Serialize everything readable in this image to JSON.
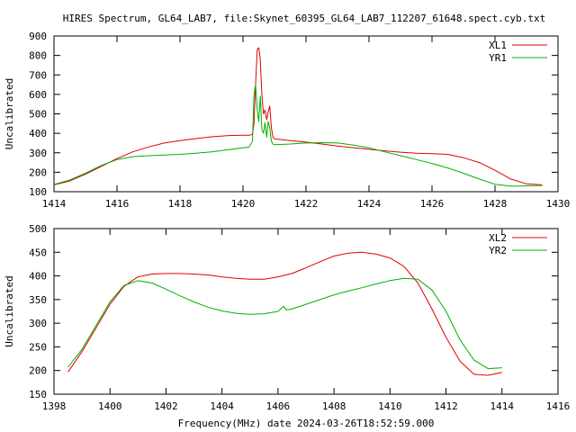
{
  "title": "HIRES Spectrum, GL64_LAB7, file:Skynet_60395_GL64_LAB7_112207_61648.spect.cyb.txt",
  "colors": {
    "red": "#e00000",
    "green": "#00b000",
    "axis": "#000000"
  },
  "chart_data": [
    {
      "type": "line",
      "xlabel": "",
      "ylabel": "Uncalibrated",
      "xlim": [
        1414,
        1430
      ],
      "ylim": [
        100,
        900
      ],
      "xticks": [
        1414,
        1416,
        1418,
        1420,
        1422,
        1424,
        1426,
        1428,
        1430
      ],
      "yticks": [
        100,
        200,
        300,
        400,
        500,
        600,
        700,
        800,
        900
      ],
      "legend_position": "top-right",
      "series": [
        {
          "name": "XL1",
          "color": "#e00000",
          "x": [
            1414.0,
            1414.5,
            1415.0,
            1415.5,
            1416.0,
            1416.5,
            1417.0,
            1417.5,
            1418.0,
            1418.5,
            1419.0,
            1419.5,
            1420.0,
            1420.2,
            1420.3,
            1420.35,
            1420.4,
            1420.45,
            1420.5,
            1420.55,
            1420.6,
            1420.65,
            1420.7,
            1420.75,
            1420.8,
            1420.85,
            1420.9,
            1420.95,
            1421.0,
            1421.5,
            1422.0,
            1422.5,
            1423.0,
            1423.5,
            1424.0,
            1424.5,
            1425.0,
            1425.5,
            1426.0,
            1426.5,
            1427.0,
            1427.5,
            1428.0,
            1428.5,
            1429.0,
            1429.5
          ],
          "y": [
            135,
            155,
            190,
            230,
            270,
            305,
            330,
            350,
            362,
            373,
            382,
            388,
            390,
            390,
            395,
            450,
            650,
            830,
            840,
            780,
            590,
            500,
            520,
            470,
            510,
            540,
            430,
            380,
            372,
            362,
            355,
            345,
            335,
            326,
            318,
            310,
            303,
            298,
            295,
            292,
            275,
            250,
            210,
            165,
            140,
            135
          ]
        },
        {
          "name": "YR1",
          "color": "#00b000",
          "x": [
            1414.0,
            1414.5,
            1415.0,
            1415.5,
            1416.0,
            1416.5,
            1417.0,
            1417.5,
            1418.0,
            1418.5,
            1419.0,
            1419.5,
            1420.0,
            1420.2,
            1420.3,
            1420.35,
            1420.4,
            1420.45,
            1420.5,
            1420.55,
            1420.6,
            1420.65,
            1420.7,
            1420.75,
            1420.8,
            1420.85,
            1420.9,
            1420.95,
            1421.0,
            1421.5,
            1422.0,
            1422.5,
            1423.0,
            1423.5,
            1424.0,
            1424.5,
            1425.0,
            1425.5,
            1426.0,
            1426.5,
            1427.0,
            1427.5,
            1428.0,
            1428.5,
            1429.0,
            1429.5
          ],
          "y": [
            137,
            160,
            195,
            235,
            265,
            280,
            285,
            288,
            292,
            298,
            305,
            315,
            325,
            330,
            360,
            600,
            650,
            520,
            460,
            590,
            420,
            400,
            455,
            380,
            460,
            430,
            360,
            345,
            342,
            345,
            350,
            352,
            350,
            340,
            325,
            305,
            285,
            265,
            245,
            222,
            195,
            165,
            138,
            128,
            130,
            132
          ]
        }
      ]
    },
    {
      "type": "line",
      "xlabel": "Frequency(MHz) date 2024-03-26T18:52:59.000",
      "ylabel": "Uncalibrated",
      "xlim": [
        1398,
        1416
      ],
      "ylim": [
        150,
        500
      ],
      "xticks": [
        1398,
        1400,
        1402,
        1404,
        1406,
        1408,
        1410,
        1412,
        1414,
        1416
      ],
      "yticks": [
        150,
        200,
        250,
        300,
        350,
        400,
        450,
        500
      ],
      "legend_position": "top-right",
      "series": [
        {
          "name": "XL2",
          "color": "#e00000",
          "x": [
            1398.5,
            1399.0,
            1399.5,
            1400.0,
            1400.5,
            1401.0,
            1401.5,
            1402.0,
            1402.5,
            1403.0,
            1403.5,
            1404.0,
            1404.5,
            1405.0,
            1405.5,
            1406.0,
            1406.5,
            1407.0,
            1407.5,
            1408.0,
            1408.5,
            1409.0,
            1409.5,
            1410.0,
            1410.5,
            1411.0,
            1411.5,
            1412.0,
            1412.5,
            1413.0,
            1413.5,
            1414.0
          ],
          "y": [
            197,
            240,
            290,
            340,
            378,
            398,
            404,
            405,
            405,
            404,
            402,
            398,
            395,
            393,
            393,
            398,
            405,
            417,
            430,
            442,
            448,
            450,
            446,
            438,
            420,
            385,
            330,
            270,
            220,
            192,
            190,
            196
          ]
        },
        {
          "name": "YR2",
          "color": "#00b000",
          "x": [
            1398.5,
            1399.0,
            1399.5,
            1400.0,
            1400.5,
            1401.0,
            1401.5,
            1402.0,
            1402.5,
            1403.0,
            1403.5,
            1404.0,
            1404.5,
            1405.0,
            1405.5,
            1406.0,
            1406.2,
            1406.3,
            1406.5,
            1407.0,
            1407.5,
            1408.0,
            1408.5,
            1409.0,
            1409.5,
            1410.0,
            1410.5,
            1411.0,
            1411.5,
            1412.0,
            1412.5,
            1413.0,
            1413.5,
            1414.0
          ],
          "y": [
            207,
            245,
            295,
            345,
            380,
            390,
            385,
            372,
            358,
            345,
            334,
            326,
            321,
            319,
            320,
            325,
            336,
            328,
            330,
            340,
            350,
            360,
            368,
            375,
            383,
            390,
            395,
            393,
            370,
            325,
            265,
            222,
            204,
            206
          ]
        }
      ]
    }
  ]
}
